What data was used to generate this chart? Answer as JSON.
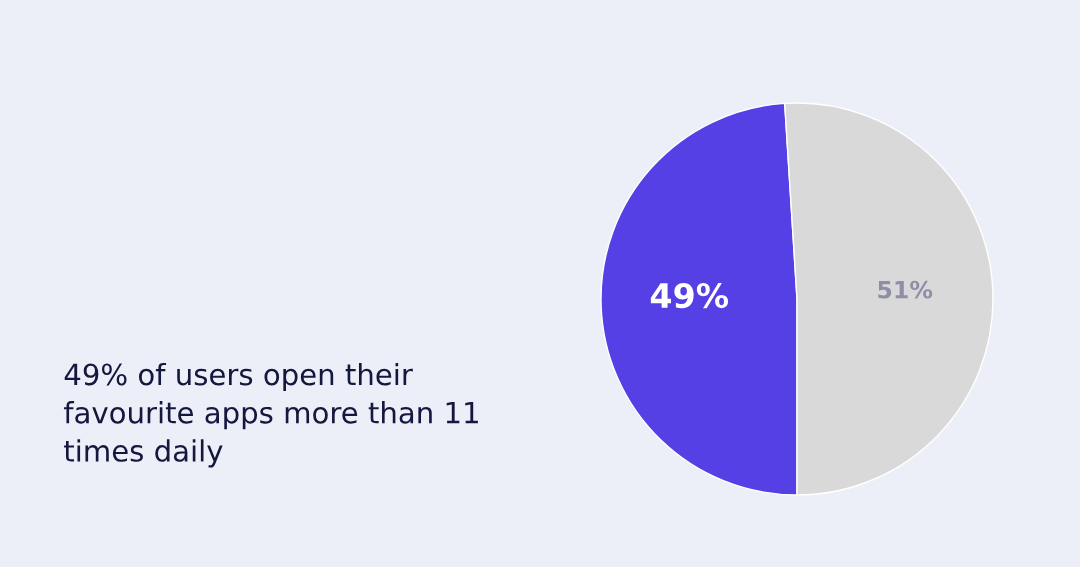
{
  "chart_data": {
    "type": "pie",
    "categories": [
      null,
      null
    ],
    "values": [
      49,
      51
    ],
    "colors": [
      "#5540e6",
      "#d9d9d9"
    ],
    "value_labels": [
      "49%",
      "51%"
    ],
    "annotations": [
      "49% of users open their favourite apps more than 11 times daily"
    ]
  }
}
